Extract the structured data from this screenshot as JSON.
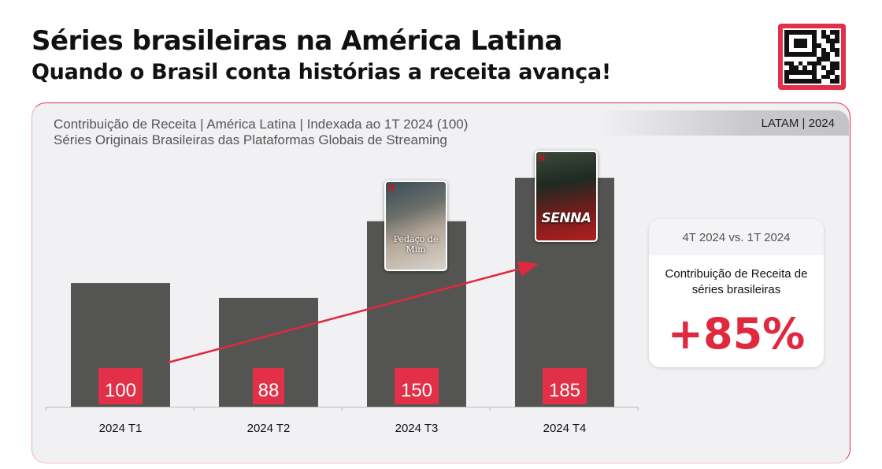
{
  "header": {
    "title": "Séries brasileiras na América Latina",
    "subtitle": "Quando o Brasil conta histórias a receita avança!"
  },
  "tag": "LATAM | 2024",
  "posters": [
    {
      "title": "Pedaço de Mim",
      "brand": "N"
    },
    {
      "title": "SENNA",
      "brand": "N"
    }
  ],
  "callout": {
    "period": "4T 2024 vs. 1T 2024",
    "description": "Contribuição de Receita de séries brasileiras",
    "value": "+85%"
  },
  "colors": {
    "bar": "#545452",
    "label_bg": "#e23048",
    "accent": "#e0283e",
    "panel_bg": "#f1f0f3"
  },
  "chart_data": {
    "type": "bar",
    "title": "Contribuição de Receita | América Latina | Indexada ao 1T 2024 (100)",
    "subtitle": "Séries Originais Brasileiras das Plataformas Globais de Streaming",
    "categories": [
      "2024 T1",
      "2024 T2",
      "2024 T3",
      "2024 T4"
    ],
    "values": [
      100,
      88,
      150,
      185
    ],
    "ylim": [
      0,
      195
    ],
    "grid": false,
    "trend_arrow": {
      "from": "2024 T1",
      "to": "2024 T4"
    }
  }
}
